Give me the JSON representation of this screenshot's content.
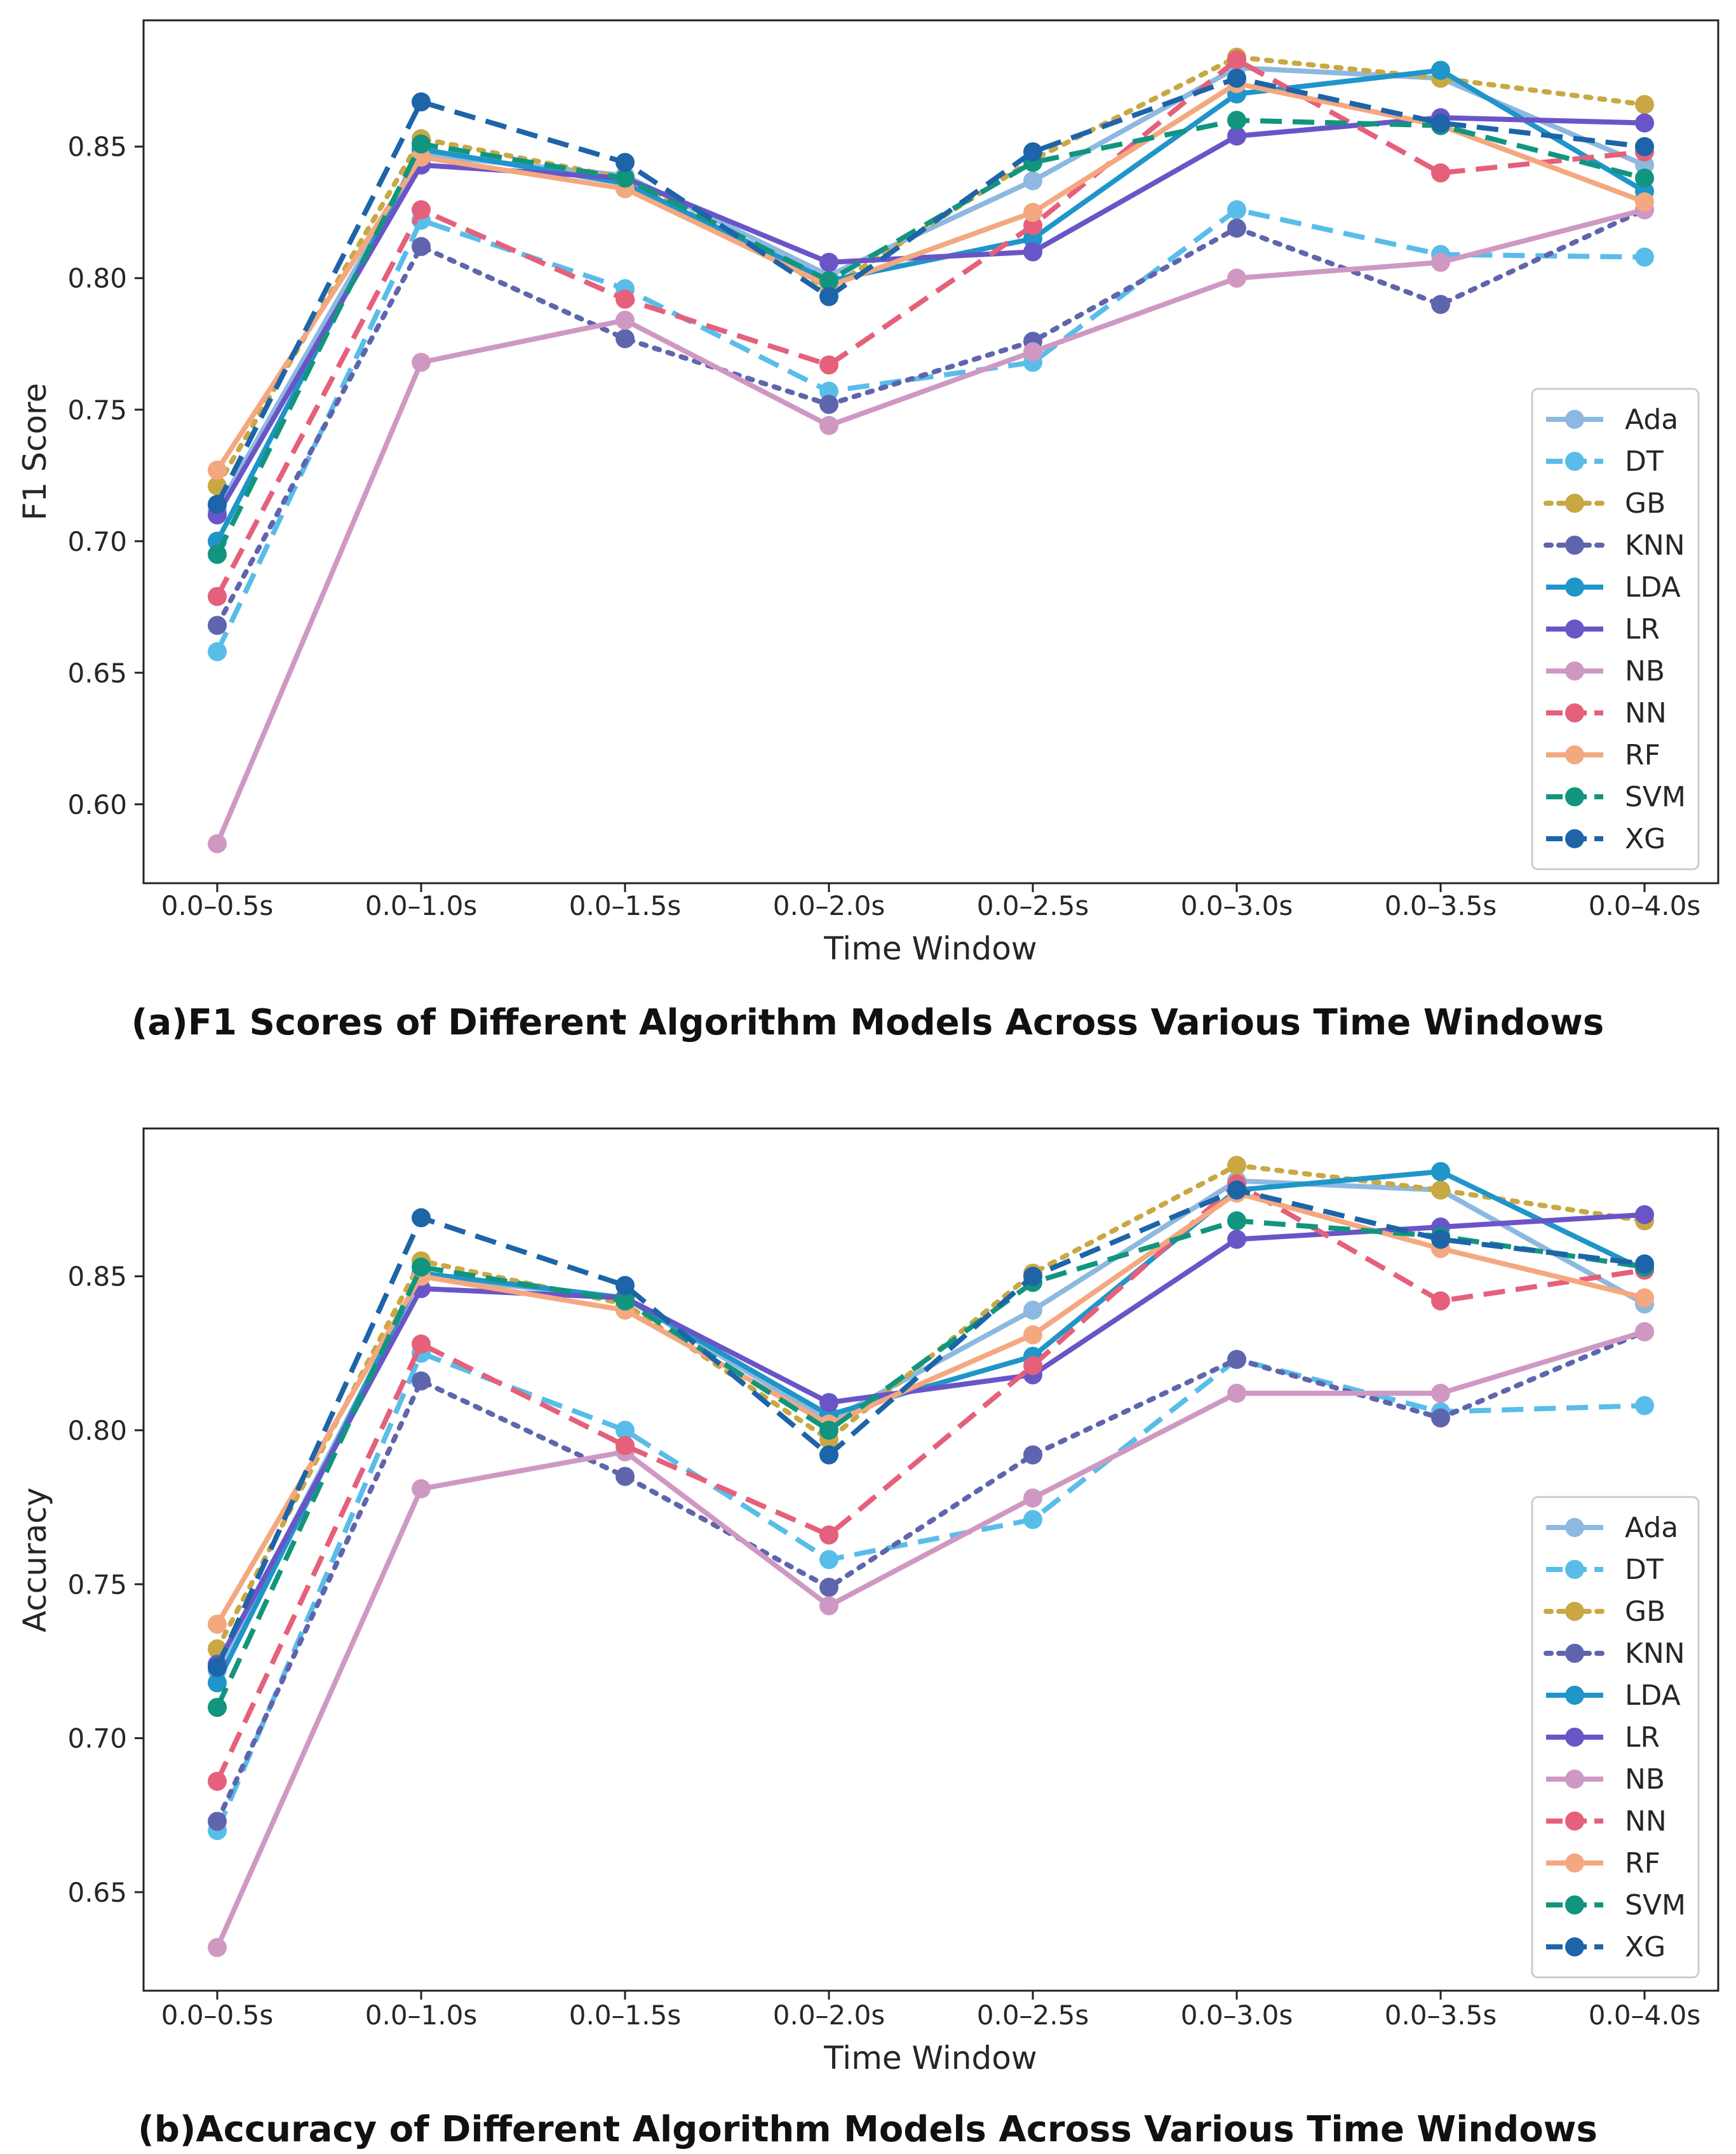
{
  "chart_data": [
    {
      "type": "line",
      "caption": "(a)F1 Scores of Different Algorithm Models Across Various Time Windows",
      "xlabel": "Time Window",
      "ylabel": "F1 Score",
      "categories": [
        "0.0–0.5s",
        "0.0–1.0s",
        "0.0–1.5s",
        "0.0–2.0s",
        "0.0–2.5s",
        "0.0–3.0s",
        "0.0–3.5s",
        "0.0–4.0s"
      ],
      "ylim": [
        0.57,
        0.898
      ],
      "yticks": [
        0.6,
        0.65,
        0.7,
        0.75,
        0.8,
        0.85
      ],
      "ytick_labels": [
        "0.60",
        "0.65",
        "0.70",
        "0.75",
        "0.80",
        "0.85"
      ],
      "legend_position": "lower-right",
      "series": [
        {
          "name": "Ada",
          "color": "#8db9e1",
          "dash": "solid",
          "values": [
            0.712,
            0.847,
            0.839,
            0.801,
            0.837,
            0.88,
            0.876,
            0.843
          ]
        },
        {
          "name": "DT",
          "color": "#59bde9",
          "dash": "dashed",
          "values": [
            0.658,
            0.822,
            0.796,
            0.757,
            0.768,
            0.826,
            0.809,
            0.808
          ]
        },
        {
          "name": "GB",
          "color": "#c9a844",
          "dash": "dotted",
          "values": [
            0.721,
            0.853,
            0.838,
            0.796,
            0.845,
            0.884,
            0.876,
            0.866
          ]
        },
        {
          "name": "KNN",
          "color": "#5f65ad",
          "dash": "dotted",
          "values": [
            0.668,
            0.812,
            0.777,
            0.752,
            0.776,
            0.819,
            0.79,
            0.826
          ]
        },
        {
          "name": "LDA",
          "color": "#1f95c9",
          "dash": "solid",
          "values": [
            0.7,
            0.849,
            0.836,
            0.799,
            0.815,
            0.87,
            0.879,
            0.833
          ]
        },
        {
          "name": "LR",
          "color": "#6a55c7",
          "dash": "solid",
          "values": [
            0.71,
            0.843,
            0.838,
            0.806,
            0.81,
            0.854,
            0.861,
            0.859
          ]
        },
        {
          "name": "NB",
          "color": "#cf98c3",
          "dash": "solid",
          "values": [
            0.585,
            0.768,
            0.784,
            0.744,
            0.772,
            0.8,
            0.806,
            0.826
          ]
        },
        {
          "name": "NN",
          "color": "#e5607a",
          "dash": "dashed",
          "values": [
            0.679,
            0.826,
            0.792,
            0.767,
            0.82,
            0.883,
            0.84,
            0.848
          ]
        },
        {
          "name": "RF",
          "color": "#f4a880",
          "dash": "solid",
          "values": [
            0.727,
            0.846,
            0.834,
            0.797,
            0.825,
            0.874,
            0.858,
            0.829
          ]
        },
        {
          "name": "SVM",
          "color": "#12957f",
          "dash": "dashed",
          "values": [
            0.695,
            0.851,
            0.838,
            0.799,
            0.844,
            0.86,
            0.858,
            0.838
          ]
        },
        {
          "name": "XG",
          "color": "#1d64a8",
          "dash": "dashed",
          "values": [
            0.714,
            0.867,
            0.844,
            0.793,
            0.848,
            0.876,
            0.859,
            0.85
          ]
        }
      ]
    },
    {
      "type": "line",
      "caption": "(b)Accuracy of Different Algorithm Models Across Various Time Windows",
      "xlabel": "Time Window",
      "ylabel": "Accuracy",
      "categories": [
        "0.0–0.5s",
        "0.0–1.0s",
        "0.0–1.5s",
        "0.0–2.0s",
        "0.0–2.5s",
        "0.0–3.0s",
        "0.0–3.5s",
        "0.0–4.0s"
      ],
      "ylim": [
        0.618,
        0.898
      ],
      "yticks": [
        0.65,
        0.7,
        0.75,
        0.8,
        0.85
      ],
      "ytick_labels": [
        "0.65",
        "0.70",
        "0.75",
        "0.80",
        "0.85"
      ],
      "legend_position": "lower-right",
      "series": [
        {
          "name": "Ada",
          "color": "#8db9e1",
          "dash": "solid",
          "values": [
            0.722,
            0.85,
            0.843,
            0.803,
            0.839,
            0.881,
            0.878,
            0.841
          ]
        },
        {
          "name": "DT",
          "color": "#59bde9",
          "dash": "dashed",
          "values": [
            0.67,
            0.825,
            0.8,
            0.758,
            0.771,
            0.823,
            0.806,
            0.808
          ]
        },
        {
          "name": "GB",
          "color": "#c9a844",
          "dash": "dotted",
          "values": [
            0.729,
            0.855,
            0.841,
            0.797,
            0.851,
            0.886,
            0.878,
            0.868
          ]
        },
        {
          "name": "KNN",
          "color": "#5f65ad",
          "dash": "dotted",
          "values": [
            0.673,
            0.816,
            0.785,
            0.749,
            0.792,
            0.823,
            0.804,
            0.832
          ]
        },
        {
          "name": "LDA",
          "color": "#1f95c9",
          "dash": "solid",
          "values": [
            0.718,
            0.851,
            0.843,
            0.805,
            0.824,
            0.878,
            0.884,
            0.852
          ]
        },
        {
          "name": "LR",
          "color": "#6a55c7",
          "dash": "solid",
          "values": [
            0.724,
            0.846,
            0.843,
            0.809,
            0.818,
            0.862,
            0.866,
            0.87
          ]
        },
        {
          "name": "NB",
          "color": "#cf98c3",
          "dash": "solid",
          "values": [
            0.632,
            0.781,
            0.793,
            0.743,
            0.778,
            0.812,
            0.812,
            0.832
          ]
        },
        {
          "name": "NN",
          "color": "#e5607a",
          "dash": "dashed",
          "values": [
            0.686,
            0.828,
            0.795,
            0.766,
            0.821,
            0.88,
            0.842,
            0.852
          ]
        },
        {
          "name": "RF",
          "color": "#f4a880",
          "dash": "solid",
          "values": [
            0.737,
            0.85,
            0.839,
            0.802,
            0.831,
            0.877,
            0.859,
            0.843
          ]
        },
        {
          "name": "SVM",
          "color": "#12957f",
          "dash": "dashed",
          "values": [
            0.71,
            0.853,
            0.842,
            0.8,
            0.848,
            0.868,
            0.863,
            0.853
          ]
        },
        {
          "name": "XG",
          "color": "#1d64a8",
          "dash": "dashed",
          "values": [
            0.723,
            0.869,
            0.847,
            0.792,
            0.85,
            0.878,
            0.862,
            0.854
          ]
        }
      ]
    }
  ]
}
